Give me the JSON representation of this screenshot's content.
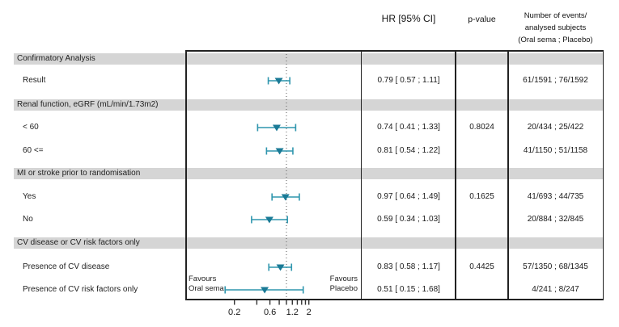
{
  "header": {
    "hr_col": "HR [95% CI]",
    "pvalue_col": "p-value",
    "events_col_line1": "Number of events/",
    "events_col_line2": "analysed subjects",
    "events_col_line3": "(Oral sema ; Placebo)"
  },
  "favours": {
    "left_line1": "Favours",
    "left_line2": "Oral sema",
    "right_line1": "Favours",
    "right_line2": "Placebo"
  },
  "colors": {
    "marker": "#1a7a96",
    "ci_line": "#2f96ae",
    "band": "#d5d5d5",
    "border": "#222222",
    "ref_line": "#555555",
    "tick": "#333333"
  },
  "chart_data": {
    "type": "forest",
    "scale": "log",
    "title": "",
    "xlabel": "",
    "ref_line": 1.0,
    "visible_tick_range": [
      0.2,
      2
    ],
    "legend_position": "none",
    "grid": false,
    "axis_ticks": [
      {
        "v": 0.2,
        "label": "0.2"
      },
      {
        "v": 0.4,
        "label": ""
      },
      {
        "v": 0.6,
        "label": "0.6"
      },
      {
        "v": 0.8,
        "label": ""
      },
      {
        "v": 1.0,
        "label": ""
      },
      {
        "v": 1.2,
        "label": "1.2"
      },
      {
        "v": 1.4,
        "label": ""
      },
      {
        "v": 1.6,
        "label": ""
      },
      {
        "v": 1.8,
        "label": ""
      },
      {
        "v": 2.0,
        "label": "2"
      }
    ],
    "rows": [
      {
        "type": "section",
        "label": "Confirmatory Analysis"
      },
      {
        "type": "item",
        "label": "Result",
        "hr": 0.79,
        "ci_low": 0.57,
        "ci_high": 1.11,
        "hr_text": "0.79 [ 0.57 ; 1.11]",
        "p_value": "",
        "events": "61/1591 ; 76/1592"
      },
      {
        "type": "section",
        "label": "Renal function, eGRF (mL/min/1.73m2)"
      },
      {
        "type": "item",
        "label": "< 60",
        "hr": 0.74,
        "ci_low": 0.41,
        "ci_high": 1.33,
        "hr_text": "0.74 [ 0.41 ; 1.33]",
        "p_value": "0.8024",
        "events": "20/434 ; 25/422"
      },
      {
        "type": "item",
        "label": "60 <=",
        "hr": 0.81,
        "ci_low": 0.54,
        "ci_high": 1.22,
        "hr_text": "0.81 [ 0.54 ; 1.22]",
        "p_value": "",
        "events": "41/1150 ; 51/1158"
      },
      {
        "type": "section",
        "label": "MI or stroke prior to randomisation"
      },
      {
        "type": "item",
        "label": "Yes",
        "hr": 0.97,
        "ci_low": 0.64,
        "ci_high": 1.49,
        "hr_text": "0.97 [ 0.64 ; 1.49]",
        "p_value": "0.1625",
        "events": "41/693 ; 44/735"
      },
      {
        "type": "item",
        "label": "No",
        "hr": 0.59,
        "ci_low": 0.34,
        "ci_high": 1.03,
        "hr_text": "0.59 [ 0.34 ; 1.03]",
        "p_value": "",
        "events": "20/884 ; 32/845"
      },
      {
        "type": "section",
        "label": "CV disease or CV risk factors only"
      },
      {
        "type": "item",
        "label": "Presence of CV disease",
        "hr": 0.83,
        "ci_low": 0.58,
        "ci_high": 1.17,
        "hr_text": "0.83 [ 0.58 ; 1.17]",
        "p_value": "0.4425",
        "events": "57/1350 ; 68/1345"
      },
      {
        "type": "item",
        "label": "Presence of CV risk factors only",
        "hr": 0.51,
        "ci_low": 0.15,
        "ci_high": 1.68,
        "hr_text": "0.51 [ 0.15 ; 1.68]",
        "p_value": "",
        "events": "4/241 ; 8/247"
      }
    ]
  }
}
